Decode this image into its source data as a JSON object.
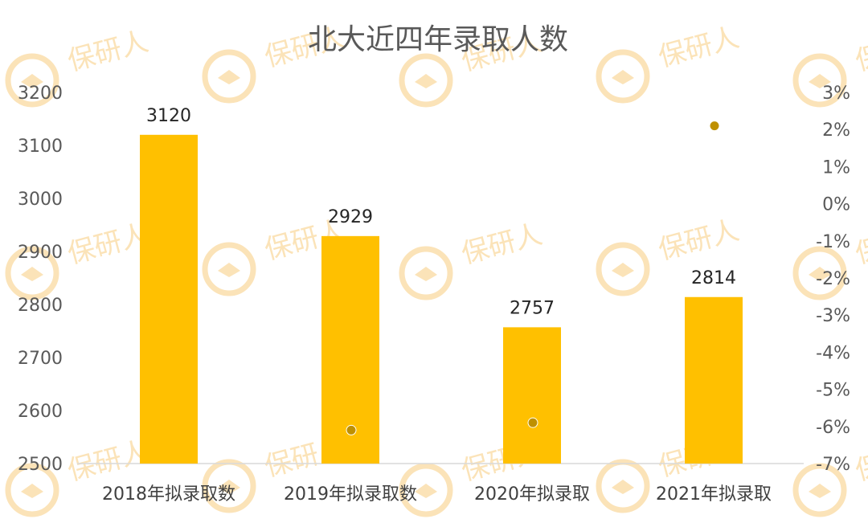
{
  "chart_data": {
    "type": "bar",
    "title": "北大近四年录取人数",
    "categories": [
      "2018年拟录取数",
      "2019年拟录取数",
      "2020年拟录取",
      "2021年拟录取"
    ],
    "series": [
      {
        "values": [
          3120,
          2929,
          2757,
          2814
        ],
        "data_labels": [
          "3120",
          "2929",
          "2757",
          "2814"
        ],
        "color": "#FFC000",
        "axis": "left"
      },
      {
        "type": "scatter",
        "values": [
          null,
          -6.1,
          -5.9,
          2.1
        ],
        "color": "#BF9000",
        "axis": "right"
      }
    ],
    "y_left": {
      "ylim": [
        2500,
        3200
      ],
      "ticks": [
        "3200",
        "3100",
        "3000",
        "2900",
        "2800",
        "2700",
        "2600",
        "2500"
      ]
    },
    "y_right": {
      "ylim": [
        -7,
        3
      ],
      "ticks": [
        "3%",
        "2%",
        "1%",
        "0%",
        "-1%",
        "-2%",
        "-3%",
        "-4%",
        "-5%",
        "-6%",
        "-7%"
      ]
    },
    "grid": false,
    "legend": "none"
  },
  "watermark": {
    "text": "保研人",
    "color": "#FBE3B8"
  }
}
